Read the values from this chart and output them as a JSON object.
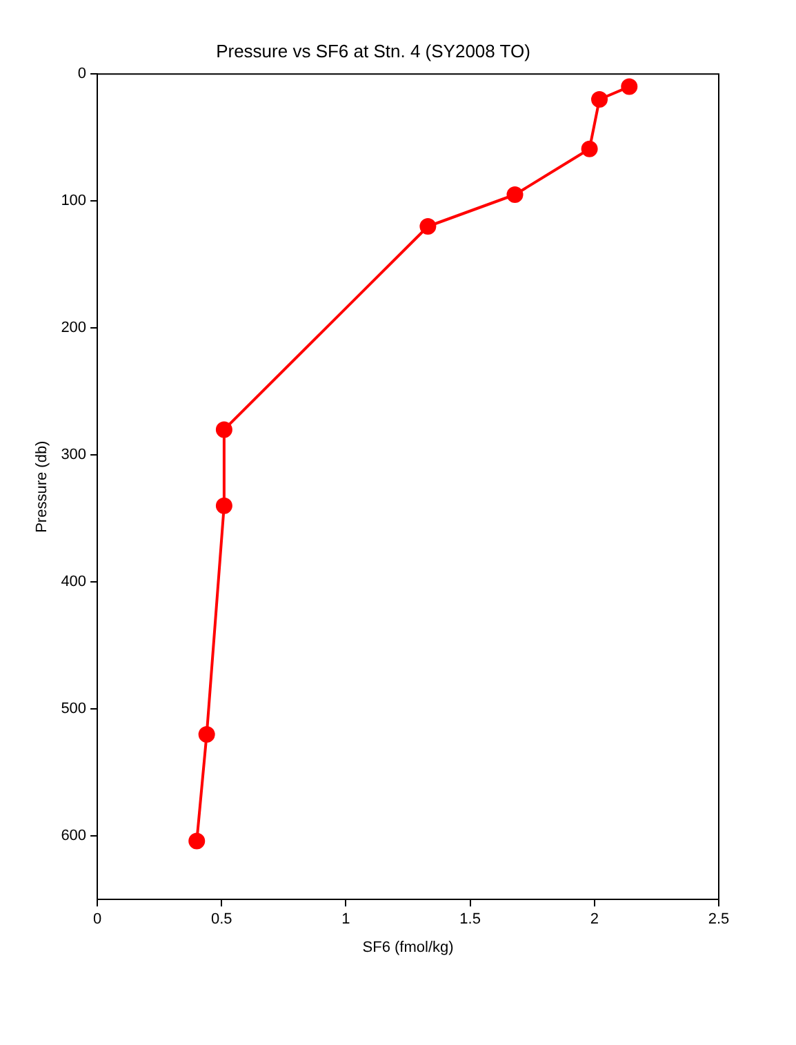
{
  "chart_data": {
    "type": "line",
    "title": "Pressure vs SF6 at Stn. 4 (SY2008 TO)",
    "xlabel": "SF6 (fmol/kg)",
    "ylabel": "Pressure (db)",
    "x": [
      2.14,
      2.02,
      1.98,
      1.68,
      1.33,
      0.51,
      0.51,
      0.44,
      0.4
    ],
    "values": [
      10,
      20,
      59,
      95,
      120,
      280,
      340,
      520,
      604
    ],
    "color": "#ff0000",
    "marker": "circle",
    "line_style": "solid",
    "xlim": [
      0,
      2.5
    ],
    "xticks": [
      0,
      0.5,
      1,
      1.5,
      2,
      2.5
    ],
    "ylim": [
      650,
      0
    ],
    "yticks": [
      0,
      100,
      200,
      300,
      400,
      500,
      600
    ],
    "grid": false,
    "legend": false
  }
}
